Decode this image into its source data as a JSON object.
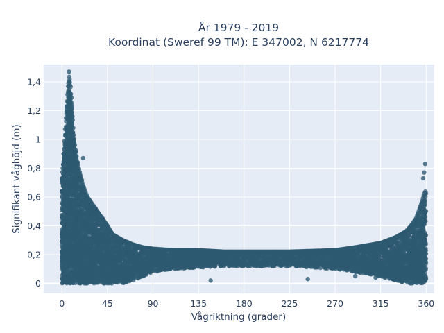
{
  "chart_data": {
    "type": "scatter",
    "title_lines": [
      "År 1979 - 2019",
      "Koordinat (Sweref 99 TM): E 347002, N 6217774"
    ],
    "xlabel": "Vågriktning (grader)",
    "ylabel": "Signifikant våghöjd (m)",
    "xlim": [
      -18,
      368
    ],
    "ylim": [
      -0.07,
      1.52
    ],
    "xticks": [
      0,
      45,
      90,
      135,
      180,
      225,
      270,
      315,
      360
    ],
    "xtick_labels": [
      "0",
      "45",
      "90",
      "135",
      "180",
      "225",
      "270",
      "315",
      "360"
    ],
    "yticks": [
      0,
      0.2,
      0.4,
      0.6,
      0.8,
      1,
      1.2,
      1.4
    ],
    "ytick_labels": [
      "0",
      "0,2",
      "0,4",
      "0,6",
      "0,8",
      "1",
      "1,2",
      "1,4"
    ],
    "grid": true,
    "marker_color": "#2e5a72",
    "background_color": "#e5ecf6",
    "grid_color": "#ffffff",
    "text_color": "#2a3f5f",
    "envelope": {
      "x": [
        0,
        2,
        5,
        7,
        9,
        12,
        15,
        20,
        25,
        30,
        35,
        40,
        45,
        50,
        60,
        70,
        80,
        90,
        110,
        135,
        160,
        180,
        225,
        270,
        290,
        315,
        330,
        340,
        345,
        350,
        355,
        358,
        360
      ],
      "ymax": [
        0.7,
        0.95,
        1.25,
        1.45,
        1.3,
        1.0,
        0.85,
        0.7,
        0.6,
        0.55,
        0.5,
        0.45,
        0.4,
        0.34,
        0.3,
        0.27,
        0.25,
        0.24,
        0.23,
        0.23,
        0.22,
        0.22,
        0.22,
        0.23,
        0.25,
        0.28,
        0.32,
        0.36,
        0.4,
        0.45,
        0.55,
        0.62,
        0.65
      ],
      "ymin": [
        0.0,
        0.0,
        0.0,
        0.0,
        0.0,
        0.0,
        0.0,
        0.0,
        0.0,
        0.0,
        0.0,
        0.0,
        0.0,
        0.0,
        0.0,
        0.02,
        0.05,
        0.08,
        0.1,
        0.11,
        0.12,
        0.12,
        0.12,
        0.1,
        0.08,
        0.05,
        0.02,
        0.0,
        0.0,
        0.0,
        0.0,
        0.0,
        0.0
      ]
    },
    "notable_points": [
      {
        "x": 7,
        "y": 1.47
      },
      {
        "x": 21,
        "y": 0.87
      },
      {
        "x": 359,
        "y": 0.83
      },
      {
        "x": 358,
        "y": 0.77
      },
      {
        "x": 357,
        "y": 0.73
      },
      {
        "x": 147,
        "y": 0.02
      },
      {
        "x": 243,
        "y": 0.03
      },
      {
        "x": 290,
        "y": 0.05
      },
      {
        "x": 310,
        "y": 0.04
      },
      {
        "x": 335,
        "y": 0.03
      }
    ]
  }
}
